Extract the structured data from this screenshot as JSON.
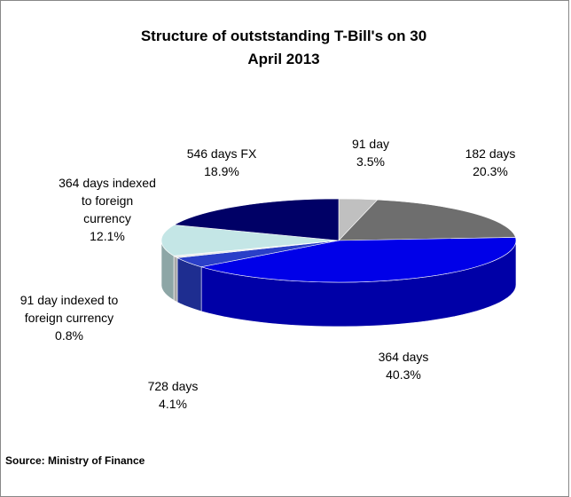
{
  "chart_data": {
    "type": "pie3d",
    "title": "Structure of outststanding T-Bill's on 30 April 2013",
    "categories": [
      "91 day",
      "182 days",
      "364 days",
      "728 days",
      "91 day indexed to foreign currency",
      "364 days indexed to foreign currency",
      "546 days FX"
    ],
    "values": [
      3.5,
      20.3,
      40.3,
      4.1,
      0.8,
      12.1,
      18.9
    ],
    "value_labels": [
      "3.5%",
      "20.3%",
      "40.3%",
      "4.1%",
      "0.8%",
      "12.1%",
      "18.9%"
    ],
    "colors": [
      "#c0c0c0",
      "#6e6e6e",
      "#0000e8",
      "#2a3fc8",
      "#e8e8e8",
      "#c4e6e6",
      "#000066"
    ],
    "source": "Source: Ministry of Finance"
  }
}
